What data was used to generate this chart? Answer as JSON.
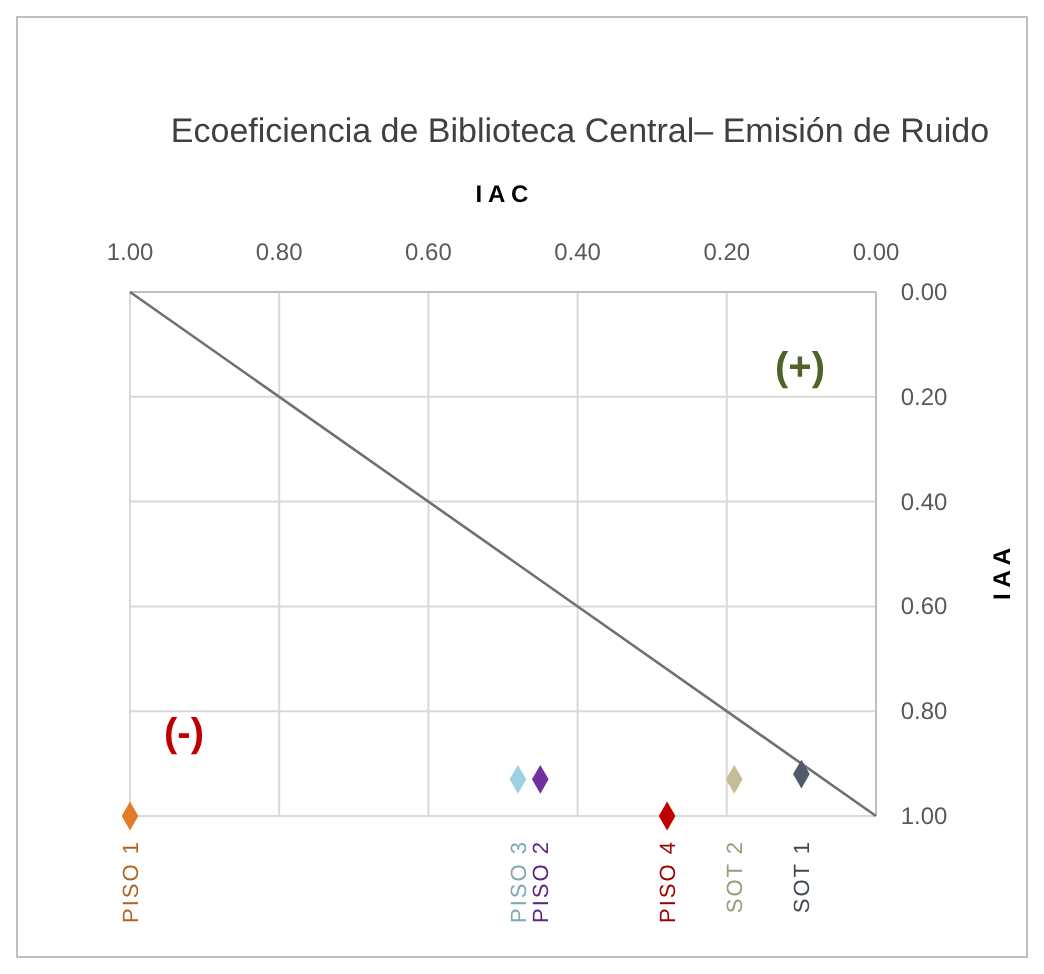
{
  "chart_data": {
    "type": "scatter",
    "title": "Ecoeficiencia de Biblioteca Central– Emisión de Ruido",
    "xlabel": "I A C",
    "ylabel": "I A A",
    "xlim": [
      1,
      0
    ],
    "ylim": [
      1,
      0
    ],
    "xticks": [
      {
        "value": 1,
        "label": "1.00"
      },
      {
        "value": 0.8,
        "label": "0.80"
      },
      {
        "value": 0.6,
        "label": "0.60"
      },
      {
        "value": 0.4,
        "label": "0.40"
      },
      {
        "value": 0.2,
        "label": "0.20"
      },
      {
        "value": 0,
        "label": "0.00"
      }
    ],
    "yticks": [
      {
        "value": 0,
        "label": "0.00"
      },
      {
        "value": 0.2,
        "label": "0.20"
      },
      {
        "value": 0.4,
        "label": "0.40"
      },
      {
        "value": 0.6,
        "label": "0.60"
      },
      {
        "value": 0.8,
        "label": "0.80"
      },
      {
        "value": 1,
        "label": "1.00"
      }
    ],
    "grid": true,
    "annotations": [
      "(+)",
      "(-)"
    ],
    "series": [
      {
        "type": "line",
        "color": "#707070",
        "x": [
          1,
          0
        ],
        "values": [
          0,
          1
        ]
      },
      {
        "name": "PISO 1",
        "color": "#e07b2a",
        "x": [
          1.0
        ],
        "values": [
          1.0
        ],
        "marker": "diamond"
      },
      {
        "name": "PISO 3",
        "color": "#9dd0e2",
        "x": [
          0.48
        ],
        "values": [
          0.93
        ],
        "marker": "diamond"
      },
      {
        "name": "PISO 2",
        "color": "#7030a0",
        "x": [
          0.45
        ],
        "values": [
          0.93
        ],
        "marker": "diamond"
      },
      {
        "name": "PISO 4",
        "color": "#c00000",
        "x": [
          0.28
        ],
        "values": [
          1.0
        ],
        "marker": "diamond"
      },
      {
        "name": "SOT 2",
        "color": "#c4bd97",
        "x": [
          0.19
        ],
        "values": [
          0.93
        ],
        "marker": "diamond"
      },
      {
        "name": "SOT 1",
        "color": "#4f5b6b",
        "x": [
          0.1
        ],
        "values": [
          0.92
        ],
        "marker": "diamond"
      }
    ]
  }
}
